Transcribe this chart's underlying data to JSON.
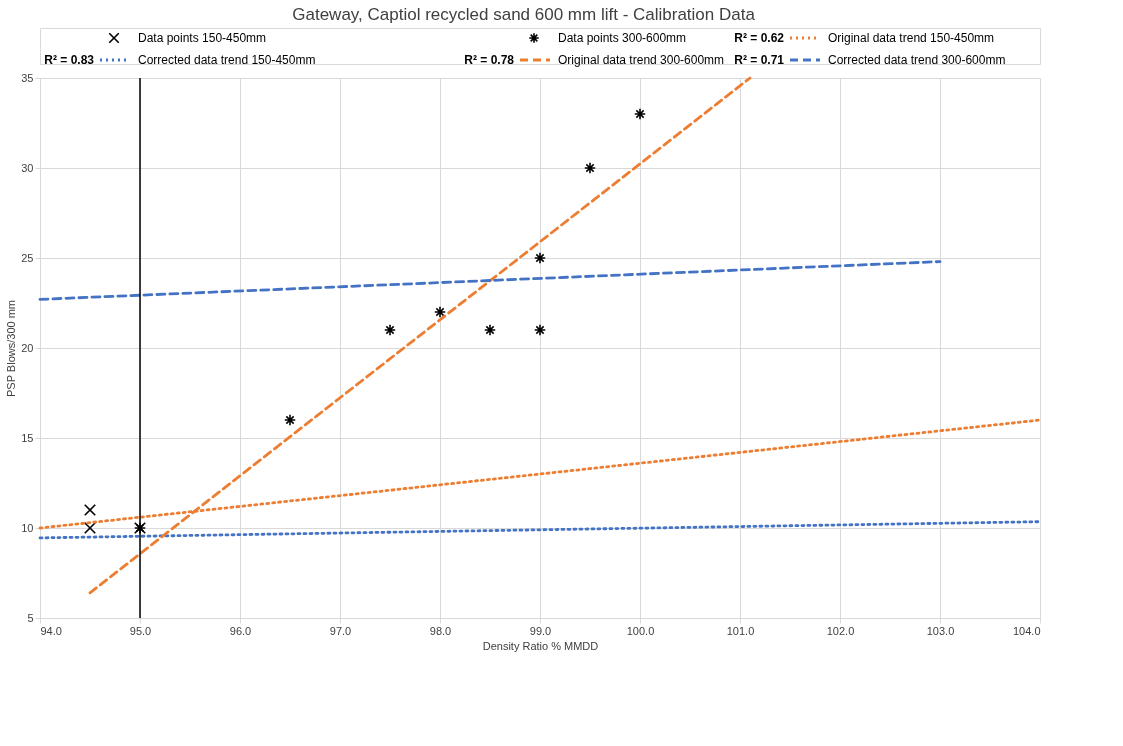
{
  "chart_data": {
    "type": "scatter",
    "title": "Gateway, Captiol recycled sand 600 mm lift - Calibration Data",
    "xlabel": "Density Ratio % MMDD",
    "ylabel": "PSP Blows/300 mm",
    "xlim": [
      94,
      104
    ],
    "ylim": [
      5,
      35
    ],
    "xticks": [
      {
        "value": 94,
        "label": "94.0"
      },
      {
        "value": 95,
        "label": "95.0"
      },
      {
        "value": 96,
        "label": "96.0"
      },
      {
        "value": 97,
        "label": "97.0"
      },
      {
        "value": 98,
        "label": "98.0"
      },
      {
        "value": 99,
        "label": "99.0"
      },
      {
        "value": 100,
        "label": "100.0"
      },
      {
        "value": 101,
        "label": "101.0"
      },
      {
        "value": 102,
        "label": "102.0"
      },
      {
        "value": 103,
        "label": "103.0"
      },
      {
        "value": 104,
        "label": "104.0"
      }
    ],
    "yticks": [
      5,
      10,
      15,
      20,
      25,
      30,
      35
    ],
    "grid": true,
    "legend": "top",
    "ref_lines": [
      {
        "axis": "x",
        "value": 95,
        "color": "#000000"
      }
    ],
    "annotations": [
      "R² = 0.62",
      "R² = 0.83",
      "R² = 0.78",
      "R² = 0.71"
    ],
    "series": [
      {
        "name": "Data points 150-450mm",
        "marker": "cross",
        "color": "#000000",
        "x": [
          94.5,
          94.5,
          95
        ],
        "values": [
          11,
          10,
          10
        ]
      },
      {
        "name": "Data points 300-600mm",
        "marker": "cross",
        "color": "#000000",
        "x": [
          95,
          96.5,
          97.5,
          98,
          98.5,
          99,
          99,
          99.5,
          100
        ],
        "values": [
          10,
          16,
          21,
          22,
          21,
          25,
          21,
          30,
          33
        ]
      },
      {
        "name": "Original data trend 150-450mm",
        "type": "line",
        "line_style": "dotted",
        "color": "#ed7d31",
        "x": [
          94,
          104
        ],
        "values": [
          10.0,
          16.0
        ]
      },
      {
        "name": "Corrected data trend 150-450mm",
        "type": "line",
        "line_style": "dotted",
        "color": "#4472c4",
        "x": [
          94,
          104
        ],
        "values": [
          9.45,
          10.35
        ]
      },
      {
        "name": "Original data trend 300-600mm",
        "type": "line",
        "line_style": "dashed",
        "color": "#ed7d31",
        "x": [
          94.5,
          101.1
        ],
        "values": [
          6.4,
          35
        ]
      },
      {
        "name": "Corrected data trend 300-600mm",
        "type": "line",
        "line_style": "dashed",
        "color": "#4472c4",
        "x": [
          94,
          103
        ],
        "values": [
          22.7,
          24.8
        ]
      }
    ]
  }
}
